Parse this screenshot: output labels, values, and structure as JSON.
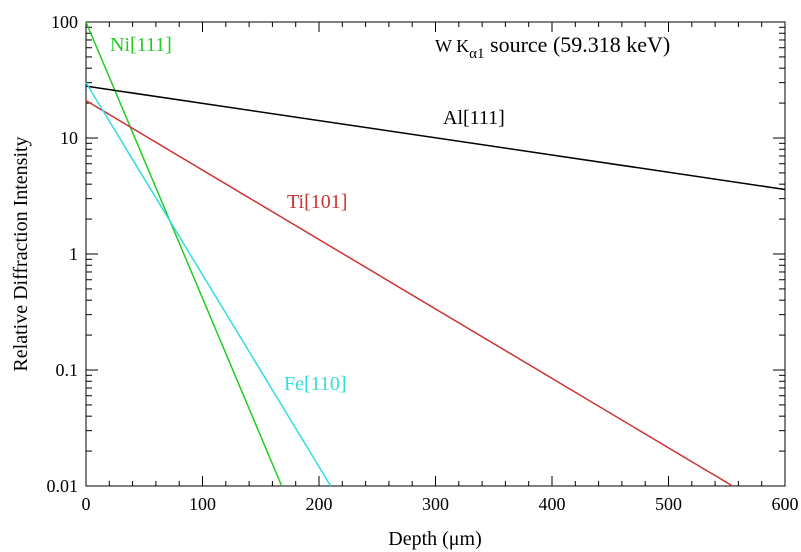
{
  "chart_data": {
    "type": "line",
    "title": "",
    "annotation": {
      "prefix": "W K",
      "subscript": "α1",
      "suffix": " source (59.318 keV)"
    },
    "xlabel": "Depth (μm)",
    "ylabel": "Relative Diffraction Intensity",
    "xlim": [
      0,
      600
    ],
    "ylim": [
      0.01,
      100
    ],
    "yscale": "log",
    "grid": false,
    "xticks": [
      0,
      100,
      200,
      300,
      400,
      500,
      600
    ],
    "xtick_labels": [
      "0",
      "100",
      "200",
      "300",
      "400",
      "500",
      "600"
    ],
    "yticks": [
      0.01,
      0.1,
      1,
      10,
      100
    ],
    "ytick_labels": [
      "0.01",
      "0.1",
      "1",
      "10",
      "100"
    ],
    "series": [
      {
        "name": "Ni[111]",
        "color": "#22cc22",
        "x": [
          0,
          168
        ],
        "y": [
          100,
          0.01
        ]
      },
      {
        "name": "Al[111]",
        "color": "#000000",
        "x": [
          0,
          600
        ],
        "y": [
          28,
          3.6
        ]
      },
      {
        "name": "Ti[101]",
        "color": "#cc3333",
        "x": [
          0,
          555
        ],
        "y": [
          21,
          0.01
        ]
      },
      {
        "name": "Fe[110]",
        "color": "#33dddd",
        "x": [
          0,
          210
        ],
        "y": [
          30,
          0.01
        ]
      }
    ]
  }
}
